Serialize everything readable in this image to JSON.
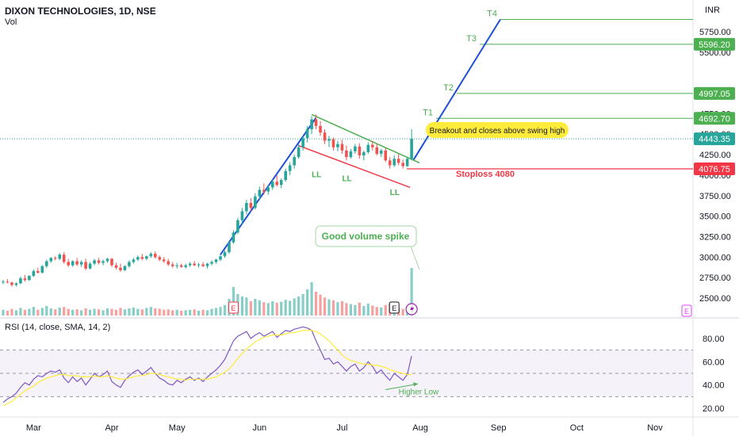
{
  "header": {
    "title": "DIXON TECHNOLOGIES, 1D, NSE",
    "volume_label": "Vol",
    "currency": "INR",
    "rsi_title": "RSI (14, close, SMA, 14, 2)"
  },
  "colors": {
    "up": "#26a69a",
    "down": "#ef5350",
    "trend": "#1e50d6",
    "target": "#4caf50",
    "stoploss": "#f23645",
    "rsi": "#7e57c2",
    "rsi_ma": "#ffeb3b",
    "callout": "#ffeb3b"
  },
  "chart_data": [
    {
      "type": "candlestick",
      "title": "DIXON TECHNOLOGIES, 1D, NSE",
      "y_axis_ticks": [
        "5750.00",
        "5500.00",
        "4750.00",
        "4500.00",
        "4250.00",
        "4000.00",
        "3750.00",
        "3500.00",
        "3250.00",
        "3000.00",
        "2750.00",
        "2500.00"
      ],
      "x_axis_ticks": [
        "Mar",
        "Apr",
        "May",
        "Jun",
        "Jul",
        "Aug",
        "Sep",
        "Oct",
        "Nov"
      ],
      "price_labels": [
        {
          "text": "5596.20",
          "price": 5596.2,
          "kind": "target"
        },
        {
          "text": "4997.05",
          "price": 4997.05,
          "kind": "target"
        },
        {
          "text": "4692.70",
          "price": 4692.7,
          "kind": "target"
        },
        {
          "text": "4443.35",
          "price": 4443.35,
          "kind": "last"
        },
        {
          "text": "4076.75",
          "price": 4076.75,
          "kind": "stop"
        }
      ],
      "targets": [
        {
          "label": "T1",
          "price": 4692.7
        },
        {
          "label": "T2",
          "price": 4997.05
        },
        {
          "label": "T3",
          "price": 5596.2
        },
        {
          "label": "T4",
          "price": 5900
        }
      ],
      "annotations": {
        "breakout": "Breakout and closes above swing high",
        "stoploss": "Stoploss 4080",
        "volume": "Good volume spike",
        "lower_lows": [
          "LL",
          "LL",
          "LL"
        ]
      },
      "candles": [
        [
          2690,
          2720,
          2670,
          2700
        ],
        [
          2700,
          2730,
          2680,
          2690
        ],
        [
          2690,
          2700,
          2640,
          2660
        ],
        [
          2660,
          2690,
          2640,
          2680
        ],
        [
          2680,
          2760,
          2670,
          2740
        ],
        [
          2740,
          2780,
          2700,
          2720
        ],
        [
          2720,
          2780,
          2710,
          2770
        ],
        [
          2770,
          2850,
          2760,
          2830
        ],
        [
          2830,
          2870,
          2800,
          2810
        ],
        [
          2810,
          2900,
          2800,
          2890
        ],
        [
          2890,
          2970,
          2870,
          2950
        ],
        [
          2950,
          3000,
          2930,
          2990
        ],
        [
          2990,
          3010,
          2960,
          2980
        ],
        [
          2980,
          3050,
          2960,
          3030
        ],
        [
          3030,
          3060,
          2920,
          2940
        ],
        [
          2940,
          2980,
          2880,
          2900
        ],
        [
          2900,
          2960,
          2880,
          2950
        ],
        [
          2950,
          2990,
          2890,
          2910
        ],
        [
          2910,
          2960,
          2880,
          2940
        ],
        [
          2940,
          2980,
          2840,
          2860
        ],
        [
          2860,
          2940,
          2850,
          2920
        ],
        [
          2920,
          2980,
          2900,
          2960
        ],
        [
          2960,
          2990,
          2910,
          2930
        ],
        [
          2930,
          2970,
          2900,
          2950
        ],
        [
          2950,
          2990,
          2930,
          2980
        ],
        [
          2980,
          2990,
          2880,
          2900
        ],
        [
          2900,
          2930,
          2850,
          2870
        ],
        [
          2870,
          2920,
          2820,
          2840
        ],
        [
          2840,
          2900,
          2830,
          2890
        ],
        [
          2890,
          2960,
          2870,
          2940
        ],
        [
          2940,
          2990,
          2920,
          2970
        ],
        [
          2970,
          3020,
          2950,
          3000
        ],
        [
          3000,
          3040,
          2960,
          2980
        ],
        [
          2980,
          3020,
          2960,
          3010
        ],
        [
          3010,
          3060,
          2990,
          3040
        ],
        [
          3040,
          3070,
          2980,
          3000
        ],
        [
          3000,
          3020,
          2950,
          2970
        ],
        [
          2970,
          3000,
          2930,
          2950
        ],
        [
          2950,
          2980,
          2890,
          2910
        ],
        [
          2910,
          2940,
          2870,
          2890
        ],
        [
          2890,
          2930,
          2860,
          2900
        ],
        [
          2900,
          2920,
          2870,
          2880
        ],
        [
          2880,
          2920,
          2860,
          2900
        ],
        [
          2900,
          2940,
          2880,
          2920
        ],
        [
          2920,
          2950,
          2890,
          2900
        ],
        [
          2900,
          2930,
          2870,
          2910
        ],
        [
          2910,
          2940,
          2880,
          2890
        ],
        [
          2890,
          2930,
          2860,
          2920
        ],
        [
          2920,
          2960,
          2900,
          2940
        ],
        [
          2940,
          2980,
          2920,
          2970
        ],
        [
          2970,
          3030,
          2950,
          3010
        ],
        [
          3010,
          3080,
          2990,
          3060
        ],
        [
          3060,
          3200,
          3040,
          3180
        ],
        [
          3180,
          3330,
          3160,
          3300
        ],
        [
          3300,
          3480,
          3280,
          3450
        ],
        [
          3450,
          3600,
          3400,
          3560
        ],
        [
          3560,
          3700,
          3520,
          3660
        ],
        [
          3660,
          3720,
          3560,
          3600
        ],
        [
          3600,
          3780,
          3580,
          3740
        ],
        [
          3740,
          3860,
          3700,
          3820
        ],
        [
          3820,
          3900,
          3760,
          3800
        ],
        [
          3800,
          3880,
          3760,
          3850
        ],
        [
          3850,
          3950,
          3820,
          3920
        ],
        [
          3920,
          4000,
          3860,
          3880
        ],
        [
          3880,
          3960,
          3840,
          3940
        ],
        [
          3940,
          4080,
          3920,
          4050
        ],
        [
          4050,
          4160,
          4000,
          4120
        ],
        [
          4120,
          4250,
          4080,
          4220
        ],
        [
          4220,
          4380,
          4200,
          4340
        ],
        [
          4340,
          4480,
          4300,
          4450
        ],
        [
          4450,
          4600,
          4400,
          4560
        ],
        [
          4560,
          4720,
          4500,
          4680
        ],
        [
          4680,
          4740,
          4560,
          4600
        ],
        [
          4600,
          4660,
          4480,
          4520
        ],
        [
          4520,
          4560,
          4380,
          4420
        ],
        [
          4420,
          4480,
          4340,
          4440
        ],
        [
          4440,
          4460,
          4300,
          4340
        ],
        [
          4340,
          4420,
          4290,
          4380
        ],
        [
          4380,
          4430,
          4260,
          4300
        ],
        [
          4300,
          4360,
          4180,
          4220
        ],
        [
          4220,
          4320,
          4200,
          4290
        ],
        [
          4290,
          4380,
          4260,
          4350
        ],
        [
          4350,
          4390,
          4200,
          4240
        ],
        [
          4240,
          4300,
          4180,
          4280
        ],
        [
          4280,
          4400,
          4260,
          4370
        ],
        [
          4370,
          4420,
          4300,
          4340
        ],
        [
          4340,
          4380,
          4240,
          4260
        ],
        [
          4260,
          4320,
          4220,
          4300
        ],
        [
          4300,
          4330,
          4160,
          4180
        ],
        [
          4180,
          4220,
          4080,
          4120
        ],
        [
          4120,
          4240,
          4100,
          4200
        ],
        [
          4200,
          4260,
          4120,
          4150
        ],
        [
          4150,
          4190,
          4080,
          4110
        ],
        [
          4110,
          4220,
          4100,
          4200
        ],
        [
          4200,
          4560,
          4180,
          4443.35
        ]
      ],
      "volume": [
        0.12,
        0.1,
        0.14,
        0.11,
        0.16,
        0.12,
        0.14,
        0.18,
        0.12,
        0.16,
        0.2,
        0.15,
        0.13,
        0.17,
        0.18,
        0.14,
        0.12,
        0.13,
        0.11,
        0.15,
        0.12,
        0.14,
        0.13,
        0.11,
        0.15,
        0.14,
        0.12,
        0.16,
        0.13,
        0.15,
        0.17,
        0.14,
        0.13,
        0.16,
        0.18,
        0.15,
        0.14,
        0.12,
        0.13,
        0.11,
        0.12,
        0.1,
        0.11,
        0.12,
        0.13,
        0.1,
        0.12,
        0.11,
        0.14,
        0.16,
        0.18,
        0.22,
        0.35,
        0.6,
        0.45,
        0.4,
        0.38,
        0.3,
        0.35,
        0.32,
        0.28,
        0.26,
        0.3,
        0.27,
        0.29,
        0.33,
        0.31,
        0.36,
        0.4,
        0.45,
        0.55,
        0.7,
        0.5,
        0.44,
        0.38,
        0.34,
        0.32,
        0.28,
        0.3,
        0.26,
        0.24,
        0.22,
        0.27,
        0.2,
        0.25,
        0.21,
        0.18,
        0.17,
        0.22,
        0.24,
        0.2,
        0.16,
        0.14,
        0.18,
        1.0
      ],
      "rsi": {
        "title": "RSI (14, close, SMA, 14, 2)",
        "y_axis_ticks": [
          "80.00",
          "60.00",
          "40.00",
          "20.00"
        ],
        "ylim": [
          15,
          90
        ],
        "bands": [
          70,
          50,
          30
        ],
        "rsi_values": [
          25,
          28,
          30,
          33,
          38,
          42,
          40,
          45,
          48,
          47,
          50,
          52,
          51,
          53,
          46,
          42,
          47,
          43,
          46,
          40,
          45,
          50,
          47,
          49,
          52,
          43,
          40,
          38,
          44,
          48,
          51,
          53,
          49,
          52,
          55,
          50,
          46,
          44,
          41,
          40,
          44,
          42,
          45,
          47,
          44,
          46,
          43,
          47,
          50,
          53,
          57,
          62,
          70,
          78,
          82,
          84,
          86,
          80,
          83,
          85,
          82,
          84,
          86,
          81,
          84,
          87,
          86,
          88,
          89,
          90,
          89,
          87,
          78,
          70,
          62,
          63,
          58,
          60,
          56,
          52,
          56,
          58,
          52,
          55,
          60,
          56,
          50,
          53,
          48,
          44,
          50,
          47,
          44,
          49,
          65
        ],
        "ma_values": [
          22,
          24,
          26,
          29,
          32,
          35,
          37,
          39,
          42,
          44,
          46,
          47,
          48,
          49,
          49,
          48,
          48,
          48,
          47,
          47,
          47,
          48,
          47,
          47,
          48,
          47,
          46,
          45,
          45,
          46,
          47,
          48,
          48,
          49,
          50,
          50,
          49,
          48,
          47,
          46,
          45,
          45,
          44,
          45,
          45,
          45,
          45,
          45,
          46,
          47,
          49,
          51,
          54,
          58,
          63,
          67,
          71,
          74,
          77,
          79,
          81,
          82,
          83,
          83,
          83,
          84,
          85,
          85,
          86,
          87,
          87,
          87,
          86,
          84,
          81,
          78,
          74,
          70,
          66,
          63,
          61,
          60,
          59,
          58,
          58,
          57,
          57,
          56,
          55,
          53,
          52,
          51,
          50,
          49,
          49
        ],
        "annotations": [
          "Higher Low"
        ]
      }
    }
  ]
}
